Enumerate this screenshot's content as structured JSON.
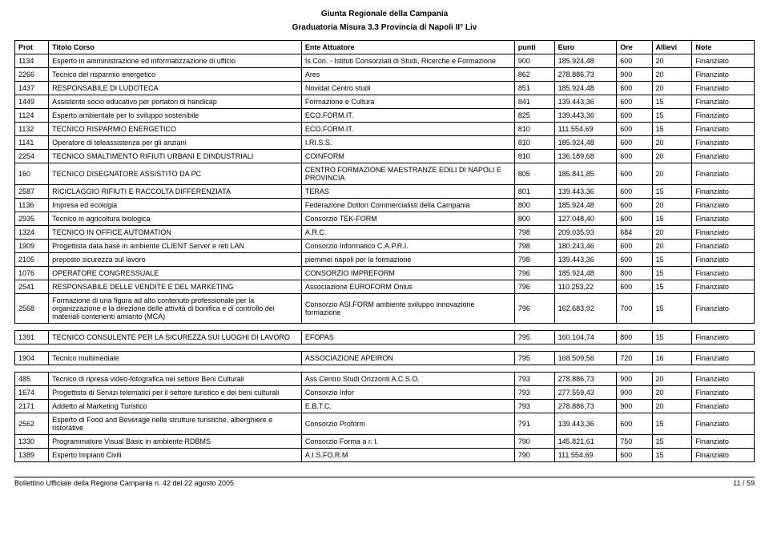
{
  "header": {
    "title": "Giunta Regionale della Campania",
    "subtitle": "Graduatoria Misura 3.3 Provincia di Napoli II° Liv"
  },
  "columns": {
    "prot": "Prot",
    "titolo": "Titolo Corso",
    "ente": "Ente Attuatore",
    "punti": "punti",
    "euro": "Euro",
    "ore": "Ore",
    "allievi": "Allievi",
    "note": "Note"
  },
  "rows1": [
    {
      "prot": "1134",
      "titolo": "Esperto in amministrazione ed informatizzazione di ufficio",
      "ente": "Is.Con. - Istituti Consorziati di Studi, Ricerche e Formazione",
      "punti": "900",
      "euro": "185.924,48",
      "ore": "600",
      "allievi": "20",
      "note": "Finanziato"
    },
    {
      "prot": "2266",
      "titolo": "Tecnico del risparmio energetico",
      "ente": "Ares",
      "punti": "862",
      "euro": "278.886,73",
      "ore": "900",
      "allievi": "20",
      "note": "Finanziato"
    },
    {
      "prot": "1437",
      "titolo": "RESPONSABILE DI LUDOTECA",
      "ente": "Novidat Centro studi",
      "punti": "851",
      "euro": "185.924,48",
      "ore": "600",
      "allievi": "20",
      "note": "Finanziato"
    },
    {
      "prot": "1449",
      "titolo": "Assistente socio educativo per portatori di handicap",
      "ente": "Formazione e Cultura",
      "punti": "841",
      "euro": "139.443,36",
      "ore": "600",
      "allievi": "15",
      "note": "Finanziato"
    },
    {
      "prot": "1124",
      "titolo": "Esperto ambientale per lo sviluppo sostenibile",
      "ente": "ECO.FORM.IT.",
      "punti": "825",
      "euro": "139.443,36",
      "ore": "600",
      "allievi": "15",
      "note": "Finanziato"
    },
    {
      "prot": "1132",
      "titolo": "TECNICO RISPARMIO ENERGETICO",
      "ente": "ECO.FORM.IT.",
      "punti": "810",
      "euro": "111.554,69",
      "ore": "600",
      "allievi": "15",
      "note": "Finanziato"
    },
    {
      "prot": "1141",
      "titolo": "Operatore di teleassistenza per gli anziani",
      "ente": "I.RI.S.S.",
      "punti": "810",
      "euro": "185.924,48",
      "ore": "600",
      "allievi": "20",
      "note": "Finanziato"
    },
    {
      "prot": "2254",
      "titolo": "TECNICO SMALTIMENTO RIFIUTI URBANI E DINDUSTRIALI",
      "ente": "COINFORM",
      "punti": "810",
      "euro": "136.189,68",
      "ore": "600",
      "allievi": "20",
      "note": "Finanziato"
    },
    {
      "prot": "160",
      "titolo": "TECNICO DISEGNATORE ASSISTITO DA PC",
      "ente": "CENTRO FORMAZIONE MAESTRANZE EDILI DI NAPOLI E PROVINCIA",
      "punti": "805",
      "euro": "185.841,85",
      "ore": "600",
      "allievi": "20",
      "note": "Finanziato"
    },
    {
      "prot": "2587",
      "titolo": "RICICLAGGIO RIFIUTI E RACCOLTA DIFFERENZIATA",
      "ente": "TERAS",
      "punti": "801",
      "euro": "139.443,36",
      "ore": "600",
      "allievi": "15",
      "note": "Finanziato"
    },
    {
      "prot": "1136",
      "titolo": "Impresa ed ecologia",
      "ente": "Federazione Dottori Commercialisti della Campania",
      "punti": "800",
      "euro": "185.924,48",
      "ore": "600",
      "allievi": "20",
      "note": "Finanziato"
    },
    {
      "prot": "2935",
      "titolo": "Tecnico in agricoltura biologica",
      "ente": "Consorzio TEK-FORM",
      "punti": "800",
      "euro": "127.048,40",
      "ore": "600",
      "allievi": "15",
      "note": "Finanziato"
    },
    {
      "prot": "1324",
      "titolo": "TECNICO IN OFFICE AUTOMATION",
      "ente": "A.R.C.",
      "punti": "798",
      "euro": "209.035,93",
      "ore": "684",
      "allievi": "20",
      "note": "Finanziato"
    },
    {
      "prot": "1909",
      "titolo": "Progettista data base in ambiente CLIENT Server e reti LAN",
      "ente": "Consorzio Informatico C.A.P.R.I.",
      "punti": "798",
      "euro": "180.243,46",
      "ore": "600",
      "allievi": "20",
      "note": "Finanziato"
    },
    {
      "prot": "2105",
      "titolo": "preposto sicurezza sul lavoro",
      "ente": "piemmei napoli per la formazione",
      "punti": "798",
      "euro": "139.443,36",
      "ore": "600",
      "allievi": "15",
      "note": "Finanziato"
    },
    {
      "prot": "1076",
      "titolo": "OPERATORE CONGRESSUALE",
      "ente": "CONSORZIO IMPREFORM",
      "punti": "796",
      "euro": "185.924,48",
      "ore": "800",
      "allievi": "15",
      "note": "Finanziato"
    },
    {
      "prot": "2541",
      "titolo": "RESPONSABILE DELLE VENDITE E DEL MARKETING",
      "ente": "Associazione EUROFORM Onlus",
      "punti": "796",
      "euro": "110.253,22",
      "ore": "600",
      "allievi": "15",
      "note": "Finanziato"
    },
    {
      "prot": "2568",
      "titolo": "Formazione di una figura ad alto contenuto professionale per la organizzazione e la direzione delle attività di bonifica e di controllo dei materiali contenenti amianto (MCA)",
      "ente": "Consorzio ASI.FORM ambiente sviluppo innovazione formazione",
      "punti": "796",
      "euro": "162.683,92",
      "ore": "700",
      "allievi": "15",
      "note": "Finanziato"
    }
  ],
  "rows2": [
    {
      "prot": "1391",
      "titolo": "TECNICO CONSULENTE PER LA SICUREZZA SUI LUOGHI DI LAVORO",
      "ente": "EFOPAS",
      "punti": "795",
      "euro": "160.104,74",
      "ore": "800",
      "allievi": "15",
      "note": "Finanziato"
    }
  ],
  "rows3": [
    {
      "prot": "1904",
      "titolo": "Tecnico multimediale",
      "ente": "ASSOCIAZIONE APEIRON",
      "punti": "795",
      "euro": "168.509,56",
      "ore": "720",
      "allievi": "16",
      "note": "Finanziato"
    }
  ],
  "rows4": [
    {
      "prot": "485",
      "titolo": "Tecnico di ripresa video-fotografica nel settore Beni Culturali",
      "ente": "Ass Centro Studi Orizzonti A.C.S.O.",
      "punti": "793",
      "euro": "278.886,73",
      "ore": "900",
      "allievi": "20",
      "note": "Finanziato"
    },
    {
      "prot": "1674",
      "titolo": "Progettista di Servizi telematici per il settore turistico e dei beni culturali",
      "ente": "Consorzio Infor",
      "punti": "793",
      "euro": "277.559,43",
      "ore": "900",
      "allievi": "20",
      "note": "Finanziato"
    },
    {
      "prot": "2171",
      "titolo": "Addetto al Marketing Turistico",
      "ente": "E.B.T.C.",
      "punti": "793",
      "euro": "278.886,73",
      "ore": "900",
      "allievi": "20",
      "note": "Finanziato"
    },
    {
      "prot": "2562",
      "titolo": "Esperto di Food and Beverage nelle strutture turistiche, alberghiere e ristorative",
      "ente": "Consorzio Proform",
      "punti": "791",
      "euro": "139.443,36",
      "ore": "600",
      "allievi": "15",
      "note": "Finanziato"
    },
    {
      "prot": "1330",
      "titolo": "Programmatore Visual Basic in ambiente RDBMS",
      "ente": "Consorzio Forma  a  r. l.",
      "punti": "790",
      "euro": "145.821,61",
      "ore": "750",
      "allievi": "15",
      "note": "Finanziato"
    },
    {
      "prot": "1389",
      "titolo": "Esperto Impianti Civili",
      "ente": "A.I.S.FO.R.M",
      "punti": "790",
      "euro": "111.554,69",
      "ore": "600",
      "allievi": "15",
      "note": "Finanziato"
    }
  ],
  "footer": {
    "left": "Bollettino Ufficiale della Regione Campania n. 42 del 22 agosto 2005",
    "right": "11 / 59"
  }
}
